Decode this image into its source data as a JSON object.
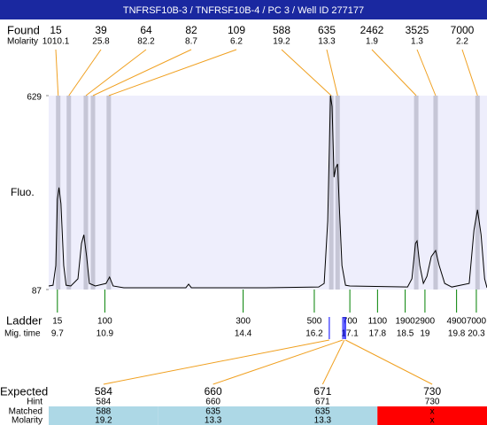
{
  "chart_data": {
    "type": "line",
    "title": "TNFRSF10B-3 / TNFRSF10B-4 / PC 3 / Well ID 277177",
    "y_label": "Fluo.",
    "ylim": [
      87,
      629
    ],
    "yticks": [
      87,
      629
    ],
    "xlim": [
      9.48,
      20.57
    ],
    "color": "#000000",
    "plot_background": "#eeeefc",
    "x": [
      9.48,
      9.59,
      9.66,
      9.7,
      9.74,
      9.79,
      9.86,
      9.92,
      10.04,
      10.22,
      10.31,
      10.37,
      10.44,
      10.51,
      10.66,
      10.93,
      11.02,
      11.11,
      11.38,
      12.95,
      13.02,
      13.09,
      14.97,
      16.31,
      16.45,
      16.54,
      16.61,
      16.65,
      16.7,
      16.74,
      16.79,
      16.83,
      16.9,
      16.99,
      17.1,
      18.56,
      18.67,
      18.76,
      18.8,
      18.87,
      18.96,
      19.05,
      19.16,
      19.27,
      19.36,
      19.5,
      19.68,
      20.12,
      20.24,
      20.33,
      20.42,
      20.51,
      20.57
    ],
    "values": [
      97,
      99,
      154,
      339,
      372,
      327,
      154,
      99,
      97,
      117,
      216,
      240,
      179,
      104,
      97,
      104,
      122,
      97,
      92,
      92,
      102,
      92,
      92,
      94,
      104,
      278,
      629,
      599,
      401,
      426,
      438,
      327,
      154,
      99,
      97,
      94,
      117,
      216,
      223,
      154,
      104,
      124,
      179,
      196,
      154,
      104,
      94,
      104,
      253,
      310,
      240,
      117,
      92
    ],
    "found": {
      "label": "Found",
      "molarity_label": "Molarity",
      "band_color": "#c6c6d6",
      "line_color": "#f0a020",
      "sizes": [
        15,
        39,
        64,
        82,
        109,
        588,
        635,
        2462,
        3525,
        7000
      ],
      "molarities": [
        1010.1,
        25.8,
        82.2,
        8.7,
        6.2,
        19.2,
        13.3,
        1.9,
        1.3,
        2.2
      ],
      "x": [
        9.72,
        9.99,
        10.42,
        10.6,
        11.0,
        16.63,
        16.79,
        18.78,
        19.27,
        20.33
      ]
    },
    "ladder": {
      "label": "Ladder",
      "time_label": "Mig. time",
      "color": "#008000",
      "sizes": [
        15,
        100,
        300,
        500,
        700,
        1100,
        1900,
        2900,
        4900,
        7000
      ],
      "mig_times": [
        9.7,
        10.9,
        14.4,
        16.2,
        17.1,
        17.8,
        18.5,
        19,
        19.8,
        20.3
      ]
    },
    "expected": {
      "label": "Expected",
      "hint_label": "Hint",
      "matched_label": "Matched",
      "molarity_label": "Molarity",
      "marker_color": "#0000ff",
      "matched_color": "#add8e6",
      "unmatched_color": "#ff0000",
      "sizes": [
        584,
        660,
        671,
        730
      ],
      "hints": [
        584,
        660,
        671,
        730
      ],
      "matched": [
        588,
        635,
        635,
        "x"
      ],
      "molarities": [
        19.2,
        13.3,
        13.3,
        "x"
      ],
      "x": [
        16.58,
        16.92,
        16.96,
        16.99
      ]
    }
  }
}
